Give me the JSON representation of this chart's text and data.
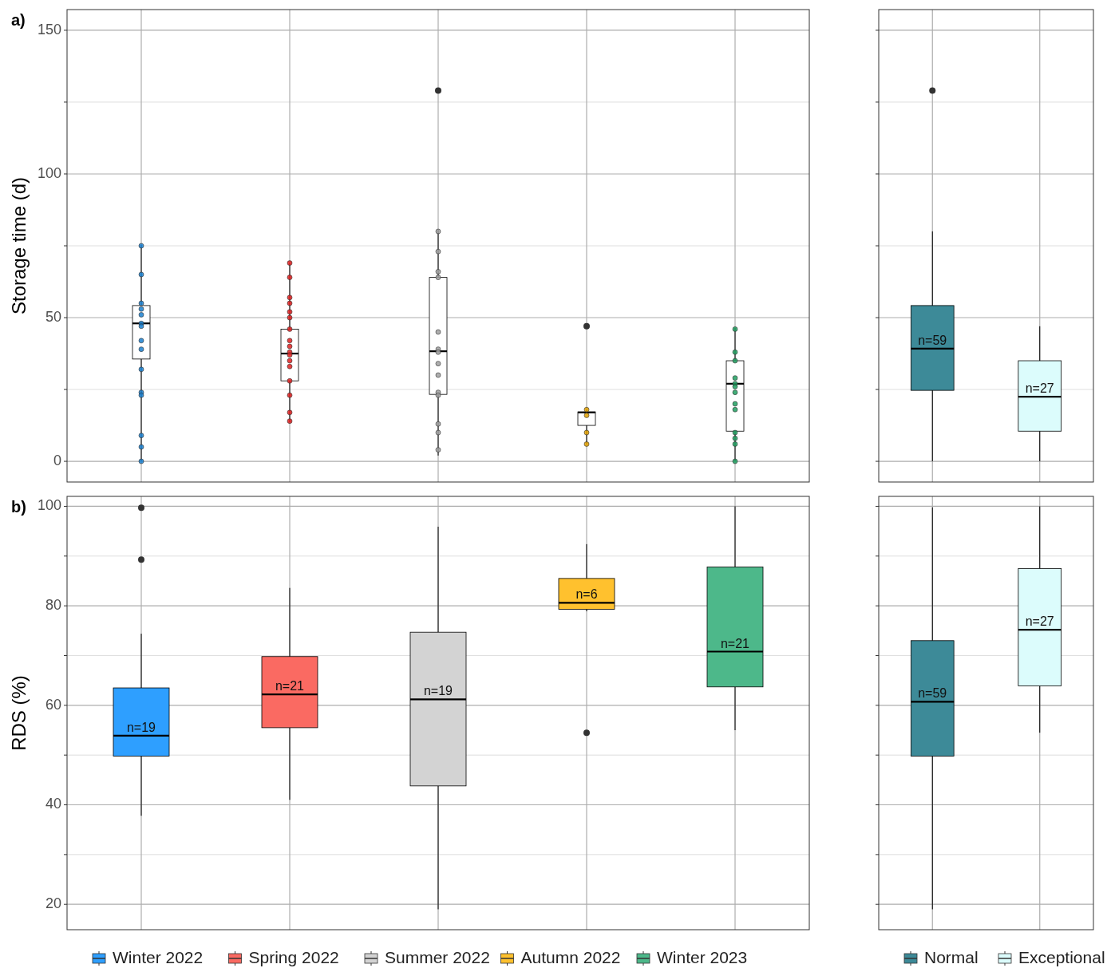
{
  "chart_data": [
    {
      "type": "box",
      "title": "a)",
      "ylabel": "Storage time (d)",
      "categories": [
        "Winter 2022",
        "Spring 2022",
        "Summer 2022",
        "Autumn 2022",
        "Winter 2023"
      ],
      "tick_labels": "y",
      "grid": true,
      "ylim": [
        -7.2,
        157.2
      ],
      "yticks": [
        0,
        {
          "value": 25,
          "label": null
        },
        50,
        {
          "value": 75,
          "label": null
        },
        100,
        {
          "value": 125,
          "label": null
        },
        150
      ],
      "series": [
        {
          "type": "box",
          "colors": [
            "#ffffff",
            "#ffffff",
            "#ffffff",
            "#ffffff",
            "#ffffff"
          ],
          "boxes": [
            {
              "low": 0,
              "q1": 35.6,
              "median": 48,
              "q3": 54.2,
              "high": 75.3
            },
            {
              "low": 13.6,
              "q1": 28,
              "median": 37.5,
              "q3": 46,
              "high": 69
            },
            {
              "low": 2,
              "q1": 23.3,
              "median": 38.3,
              "q3": 64,
              "high": 80.5,
              "outliers": [
                129
              ]
            },
            {
              "low": 6,
              "q1": 12.5,
              "median": 17,
              "q3": 17.2,
              "high": 18,
              "outliers": [
                47
              ]
            },
            {
              "low": 0,
              "q1": 10.5,
              "median": 27,
              "q3": 35,
              "high": 46.4
            }
          ]
        },
        {
          "type": "scatter",
          "color": "#1a80d0",
          "x": [
            "Winter 2022",
            "Winter 2022",
            "Winter 2022",
            "Winter 2022",
            "Winter 2022",
            "Winter 2022",
            "Winter 2022",
            "Winter 2022",
            "Winter 2022",
            "Winter 2022",
            "Winter 2022",
            "Winter 2022",
            "Winter 2022",
            "Winter 2022",
            "Winter 2022"
          ],
          "values": [
            75,
            65,
            55,
            53,
            51,
            48,
            47,
            42,
            39,
            32,
            24,
            23,
            9,
            5,
            0
          ]
        },
        {
          "type": "scatter",
          "color": "#e02020",
          "x": [
            "Spring 2022",
            "Spring 2022",
            "Spring 2022",
            "Spring 2022",
            "Spring 2022",
            "Spring 2022",
            "Spring 2022",
            "Spring 2022",
            "Spring 2022",
            "Spring 2022",
            "Spring 2022",
            "Spring 2022",
            "Spring 2022",
            "Spring 2022",
            "Spring 2022",
            "Spring 2022",
            "Spring 2022"
          ],
          "values": [
            69,
            64,
            57,
            55,
            52,
            50,
            46,
            42,
            40,
            38,
            37,
            35,
            33,
            28,
            23,
            17,
            14
          ]
        },
        {
          "type": "scatter",
          "color": "#a0a0a0",
          "x": [
            "Summer 2022",
            "Summer 2022",
            "Summer 2022",
            "Summer 2022",
            "Summer 2022",
            "Summer 2022",
            "Summer 2022",
            "Summer 2022",
            "Summer 2022",
            "Summer 2022",
            "Summer 2022",
            "Summer 2022",
            "Summer 2022",
            "Summer 2022"
          ],
          "values": [
            80,
            73,
            66,
            64,
            45,
            39,
            38,
            34,
            30,
            24,
            23,
            13,
            10,
            4
          ]
        },
        {
          "type": "scatter",
          "color": "#e0a000",
          "x": [
            "Autumn 2022",
            "Autumn 2022",
            "Autumn 2022",
            "Autumn 2022"
          ],
          "values": [
            18,
            16,
            10,
            6
          ]
        },
        {
          "type": "scatter",
          "color": "#20a060",
          "x": [
            "Winter 2023",
            "Winter 2023",
            "Winter 2023",
            "Winter 2023",
            "Winter 2023",
            "Winter 2023",
            "Winter 2023",
            "Winter 2023",
            "Winter 2023",
            "Winter 2023",
            "Winter 2023",
            "Winter 2023",
            "Winter 2023"
          ],
          "values": [
            46,
            38,
            35,
            29,
            27,
            26,
            24,
            20,
            18,
            10,
            8,
            6,
            0
          ]
        }
      ]
    },
    {
      "type": "box",
      "categories": [
        "Normal",
        "Exceptional"
      ],
      "tick_labels": false,
      "grid": true,
      "ylim": [
        -7.2,
        157.2
      ],
      "yticks": [
        0,
        {
          "value": 25,
          "label": null
        },
        50,
        {
          "value": 75,
          "label": null
        },
        100,
        {
          "value": 125,
          "label": null
        },
        150
      ],
      "series": [
        {
          "type": "box",
          "colors": [
            "#3d8a98",
            "#dcfcfc"
          ],
          "boxes": [
            {
              "low": 0,
              "q1": 24.7,
              "median": 39.2,
              "q3": 54.2,
              "high": 80,
              "outliers": [
                129
              ]
            },
            {
              "low": 0,
              "q1": 10.5,
              "median": 22.5,
              "q3": 35,
              "high": 47
            }
          ]
        }
      ],
      "annotations": [
        "n=59",
        "n=27"
      ]
    },
    {
      "type": "box",
      "title": "b)",
      "ylabel": "RDS (%)",
      "categories": [
        "Winter 2022",
        "Spring 2022",
        "Summer 2022",
        "Autumn 2022",
        "Winter 2023"
      ],
      "tick_labels": "y",
      "grid": true,
      "legend": "bottom",
      "ylim": [
        14.9,
        102
      ],
      "yticks": [
        20,
        {
          "value": 30,
          "label": null
        },
        40,
        {
          "value": 50,
          "label": null
        },
        60,
        {
          "value": 70,
          "label": null
        },
        80,
        {
          "value": 90,
          "label": null
        },
        100
      ],
      "series": [
        {
          "type": "box",
          "name": "Winter 2022",
          "color": "#2e9fff",
          "boxes": [
            {
              "low": 37.8,
              "q1": 49.8,
              "median": 53.9,
              "q3": 63.5,
              "high": 74.4,
              "outliers": [
                99.7,
                89.3
              ]
            },
            null,
            null,
            null,
            null
          ]
        },
        {
          "type": "box",
          "name": "Spring 2022",
          "color": "#fa6a62",
          "boxes": [
            null,
            {
              "low": 41,
              "q1": 55.5,
              "median": 62.2,
              "q3": 69.8,
              "high": 83.6
            },
            null,
            null,
            null
          ]
        },
        {
          "type": "box",
          "name": "Summer 2022",
          "color": "#d3d3d3",
          "boxes": [
            null,
            null,
            {
              "low": 19,
              "q1": 43.8,
              "median": 61.2,
              "q3": 74.7,
              "high": 95.9
            },
            null,
            null
          ]
        },
        {
          "type": "box",
          "name": "Autumn 2022",
          "color": "#ffc12e",
          "boxes": [
            null,
            null,
            null,
            {
              "low": 78.9,
              "q1": 79.3,
              "median": 80.6,
              "q3": 85.5,
              "high": 92.4,
              "outliers": [
                54.5
              ]
            },
            null
          ]
        },
        {
          "type": "box",
          "name": "Winter 2023",
          "color": "#4db88a",
          "boxes": [
            null,
            null,
            null,
            null,
            {
              "low": 55,
              "q1": 63.7,
              "median": 70.8,
              "q3": 87.8,
              "high": 100
            }
          ]
        }
      ],
      "annotations": [
        "n=19",
        "n=21",
        "n=19",
        "n=6",
        "n=21"
      ]
    },
    {
      "type": "box",
      "categories": [
        "Normal",
        "Exceptional"
      ],
      "tick_labels": false,
      "grid": true,
      "legend": "bottom",
      "ylim": [
        14.9,
        102
      ],
      "yticks": [
        20,
        {
          "value": 30,
          "label": null
        },
        40,
        {
          "value": 50,
          "label": null
        },
        60,
        {
          "value": 70,
          "label": null
        },
        80,
        {
          "value": 90,
          "label": null
        },
        100
      ],
      "series": [
        {
          "type": "box",
          "name": "Normal",
          "color": "#3d8a98",
          "boxes": [
            {
              "low": 19,
              "q1": 49.8,
              "median": 60.7,
              "q3": 73,
              "high": 99.8
            },
            null
          ]
        },
        {
          "type": "box",
          "name": "Exceptional",
          "color": "#dcfcfc",
          "boxes": [
            null,
            {
              "low": 54.5,
              "q1": 63.9,
              "median": 75.2,
              "q3": 87.5,
              "high": 100
            }
          ]
        }
      ],
      "annotations": [
        "n=59",
        "n=27"
      ]
    }
  ]
}
